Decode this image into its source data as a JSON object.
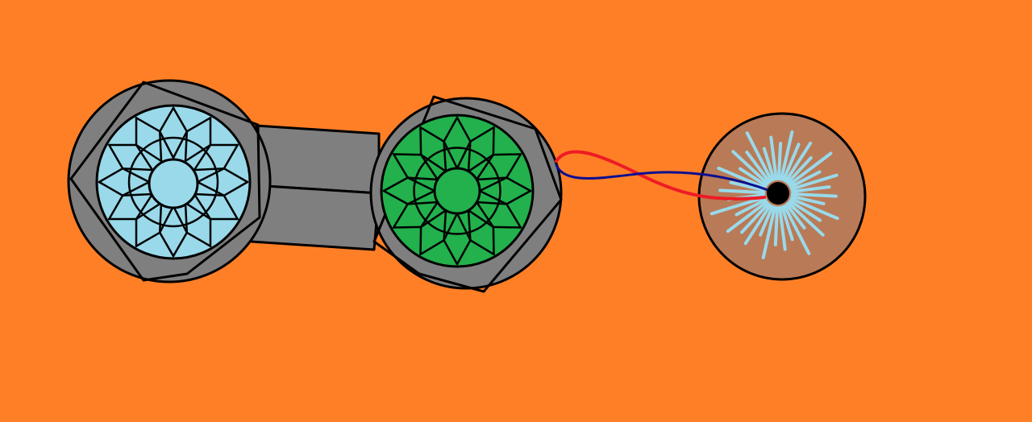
{
  "colors": {
    "background": "#FF7F27",
    "housing": "#7F7F7F",
    "outline": "#000000",
    "left_disc": "#99D9EA",
    "right_disc": "#22B14C",
    "target_disc": "#B97A57",
    "rays": "#99D9EA",
    "wire_red": "#ED1C24",
    "wire_blue": "#0B0F8F",
    "center_dot": "#000000"
  },
  "icons": {
    "left_unit": "faceted-light-blue-disc",
    "right_unit": "faceted-green-disc",
    "target": "brown-disc-with-starburst"
  }
}
